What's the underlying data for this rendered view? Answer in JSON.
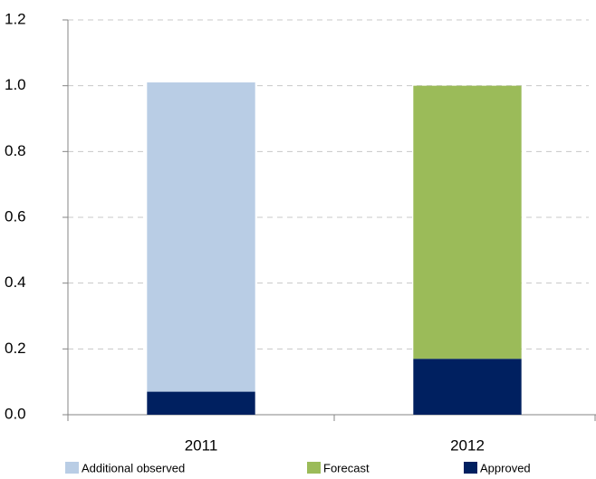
{
  "chart_data": {
    "type": "stacked_bar",
    "categories": [
      "2011",
      "2012"
    ],
    "series": [
      {
        "name": "Additional observed",
        "color": "#b9cde5",
        "values": [
          0.94,
          null
        ]
      },
      {
        "name": "Forecast",
        "color": "#9bbb59",
        "values": [
          null,
          0.83
        ]
      },
      {
        "name": "Approved",
        "color": "#002060",
        "values": [
          0.07,
          0.17
        ]
      }
    ],
    "ylim": [
      0,
      1.2
    ],
    "yticks": [
      {
        "value": 0,
        "label": "0.0"
      },
      0.2,
      0.4,
      0.6,
      0.8,
      {
        "value": 1,
        "label": "1.0"
      },
      1.2
    ],
    "grid": true
  }
}
